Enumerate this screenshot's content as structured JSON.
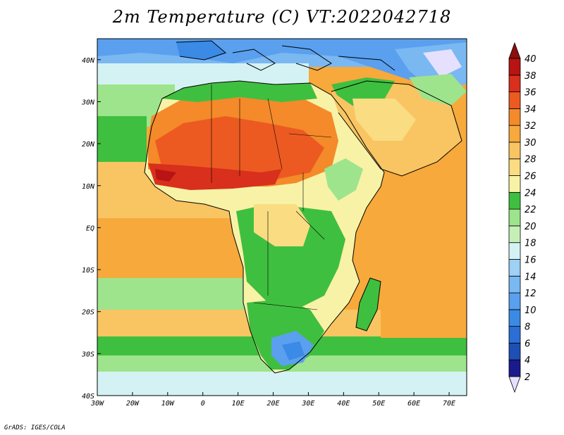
{
  "title": "2m Temperature (C) VT:2022042718",
  "footer": "GrADS: IGES/COLA",
  "map": {
    "lon_min": -30,
    "lon_max": 75,
    "lat_min": -40,
    "lat_max": 45,
    "x_ticks": [
      "30W",
      "20W",
      "10W",
      "0",
      "10E",
      "20E",
      "30E",
      "40E",
      "50E",
      "60E",
      "70E"
    ],
    "x_tick_values": [
      -30,
      -20,
      -10,
      0,
      10,
      20,
      30,
      40,
      50,
      60,
      70
    ],
    "y_ticks": [
      "40N",
      "30N",
      "20N",
      "10N",
      "EQ",
      "10S",
      "20S",
      "30S",
      "40S"
    ],
    "y_tick_values": [
      40,
      30,
      20,
      10,
      0,
      -10,
      -20,
      -30,
      -40
    ]
  },
  "colorbar": {
    "levels": [
      "2",
      "4",
      "6",
      "8",
      "10",
      "12",
      "14",
      "16",
      "18",
      "20",
      "22",
      "24",
      "26",
      "28",
      "30",
      "32",
      "34",
      "36",
      "38",
      "40"
    ],
    "colors": [
      "#1a1a8c",
      "#1e4fb4",
      "#2b6fd6",
      "#3a8ae6",
      "#5aa0ee",
      "#7ab8f2",
      "#9fd0f6",
      "#d4f2f4",
      "#c6efb8",
      "#9ee48c",
      "#3fbf3f",
      "#f7f2a6",
      "#fadc82",
      "#f8c562",
      "#f7a93c",
      "#f48a2a",
      "#ec5a22",
      "#d8301c",
      "#b81414"
    ],
    "under_color": "#e6e0ff",
    "over_color": "#8c0e0e"
  }
}
